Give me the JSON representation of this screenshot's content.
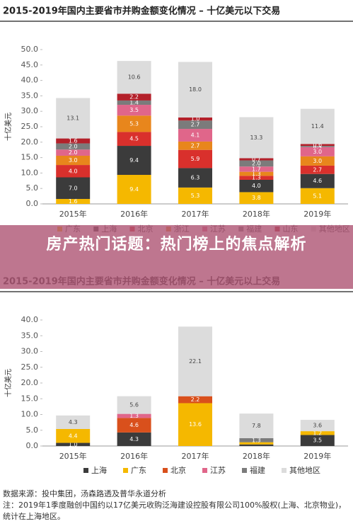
{
  "chart_data": [
    {
      "type": "bar",
      "stacked": true,
      "title": "2015-2019年国内主要省市并购金额变化情况 – 十亿美元以下交易",
      "ylabel": "十亿美元",
      "categories": [
        "2015年",
        "2016年",
        "2017年",
        "2018年",
        "2019年"
      ],
      "ylim": [
        0,
        50
      ],
      "yticks": [
        {
          "value": 0,
          "label": "0.0"
        },
        {
          "value": 5,
          "label": "5.0"
        },
        {
          "value": 10,
          "label": "10.0"
        },
        {
          "value": 15,
          "label": "15.0"
        },
        {
          "value": 20,
          "label": "20.0"
        },
        {
          "value": 25,
          "label": "25.0"
        },
        {
          "value": 30,
          "label": "30.0"
        },
        {
          "value": 35,
          "label": "35.0"
        },
        {
          "value": 40,
          "label": "40.0"
        },
        {
          "value": 45,
          "label": "45.0"
        },
        {
          "value": 50,
          "label": "50.0"
        }
      ],
      "series": [
        {
          "name": "广东",
          "color": "#f5b800",
          "values": [
            1.6,
            9.4,
            5.3,
            3.8,
            5.1
          ],
          "value_labels": [
            "1.6",
            "9.4",
            "5.3",
            "3.8",
            "5.1"
          ]
        },
        {
          "name": "上海",
          "color": "#3b3b3b",
          "values": [
            7,
            9.4,
            6.3,
            4,
            4.6
          ],
          "value_labels": [
            "7.0",
            "9.4",
            "6.3",
            "4.0",
            "4.6"
          ]
        },
        {
          "name": "北京",
          "color": "#d9302c",
          "values": [
            4,
            4.5,
            5.9,
            1.3,
            2.7
          ],
          "value_labels": [
            "4.0",
            "4.5",
            "5.9",
            "1.3",
            "2.7"
          ]
        },
        {
          "name": "浙江",
          "color": "#e8861c",
          "values": [
            3,
            5.3,
            2.7,
            1.3,
            3
          ],
          "value_labels": [
            "3.0",
            "5.3",
            "2.7",
            "1.3",
            "3.0"
          ]
        },
        {
          "name": "江苏",
          "color": "#e0668a",
          "values": [
            2,
            3.5,
            4.1,
            1.7,
            3
          ],
          "value_labels": [
            "2.0",
            "3.5",
            "4.1",
            "1.7",
            "3.0"
          ]
        },
        {
          "name": "福建",
          "color": "#7b7b7b",
          "values": [
            2,
            1.4,
            2.7,
            2,
            0.4
          ],
          "value_labels": [
            "2.0",
            "1.4",
            "2.7",
            "2.0",
            "0.4"
          ]
        },
        {
          "name": "山东",
          "color": "#b3202a",
          "values": [
            1.6,
            2.2,
            1,
            0.7,
            0.6
          ],
          "value_labels": [
            "1.6",
            "2.2",
            "1.0",
            "0.7",
            "0.6"
          ]
        },
        {
          "name": "其他地区",
          "color": "#dcdcdc",
          "values": [
            13.1,
            10.6,
            18,
            13.3,
            11.4
          ],
          "value_labels": [
            "13.1",
            "10.6",
            "18.0",
            "13.3",
            "11.4"
          ]
        }
      ]
    },
    {
      "type": "bar",
      "stacked": true,
      "title": "2015-2019年国内主要省市并购金额变化情况 – 十亿美元以上交易",
      "ylabel": "十亿美元",
      "categories": [
        "2015年",
        "2016年",
        "2017年",
        "2018年",
        "2019年"
      ],
      "ylim": [
        0,
        40
      ],
      "yticks": [
        {
          "value": 0,
          "label": "0.0"
        },
        {
          "value": 5,
          "label": "5.0"
        },
        {
          "value": 10,
          "label": "10.0"
        },
        {
          "value": 15,
          "label": "15.0"
        },
        {
          "value": 20,
          "label": "20.0"
        },
        {
          "value": 25,
          "label": "25.0"
        },
        {
          "value": 30,
          "label": "30.0"
        },
        {
          "value": 35,
          "label": "35.0"
        },
        {
          "value": 40,
          "label": "40.0"
        }
      ],
      "series": [
        {
          "name": "上海",
          "color": "#3b3b3b",
          "values": [
            1,
            4.3,
            0,
            0.5,
            3.5
          ],
          "value_labels": [
            "1.0",
            "4.3",
            null,
            null,
            "3.5"
          ]
        },
        {
          "name": "广东",
          "color": "#f5b800",
          "values": [
            4.4,
            0,
            13.6,
            0.7,
            1.2
          ],
          "value_labels": [
            "4.4",
            null,
            "13.6",
            null,
            "1.2"
          ]
        },
        {
          "name": "北京",
          "color": "#d9501c",
          "values": [
            0,
            4.6,
            2.2,
            0,
            0
          ],
          "value_labels": [
            null,
            "4.6",
            "2.2",
            null,
            null
          ]
        },
        {
          "name": "江苏",
          "color": "#e0668a",
          "values": [
            0,
            1.3,
            0,
            0,
            0
          ],
          "value_labels": [
            null,
            "1.3",
            null,
            null,
            null
          ]
        },
        {
          "name": "福建",
          "color": "#7b7b7b",
          "values": [
            0,
            0,
            0,
            1.3,
            0
          ],
          "value_labels": [
            null,
            null,
            null,
            "1.3",
            null
          ]
        },
        {
          "name": "其他地区",
          "color": "#dcdcdc",
          "values": [
            4.3,
            5.6,
            22.1,
            7.8,
            3.6
          ],
          "value_labels": [
            "4.3",
            "5.6",
            "22.1",
            "7.8",
            "3.6"
          ]
        }
      ]
    }
  ],
  "overlay": {
    "title": "房产热门话题：热门榜上的焦点解析"
  },
  "notes": {
    "source": "数据来源：投中集团，汤森路透及普华永道分析",
    "note": "注：2019年1季度融创中国约以17亿美元收购泛海建设控股有限公司100%股权(上海、北京物业)，统计在上海地区。"
  }
}
